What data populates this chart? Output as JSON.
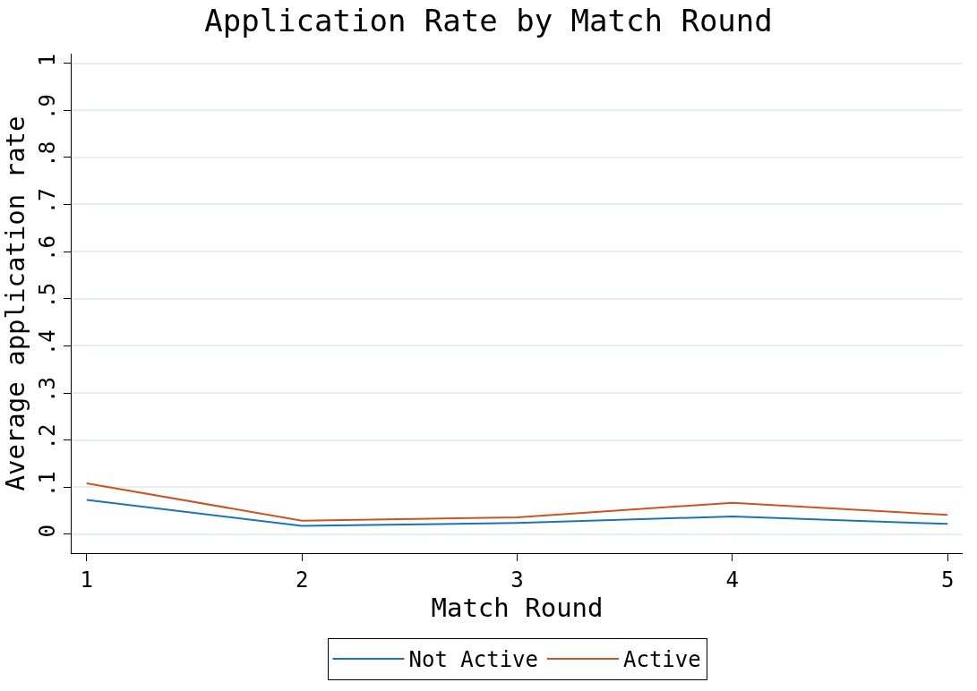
{
  "chart_data": {
    "type": "line",
    "title": "Application Rate by Match Round",
    "xlabel": "Match Round",
    "ylabel": "Average application rate",
    "x": [
      1,
      2,
      3,
      4,
      5
    ],
    "series": [
      {
        "name": "Not Active",
        "color": "#1a75b5",
        "values": [
          0.073,
          0.018,
          0.024,
          0.038,
          0.022
        ]
      },
      {
        "name": "Active",
        "color": "#cc5420",
        "values": [
          0.108,
          0.029,
          0.036,
          0.067,
          0.041
        ]
      }
    ],
    "xlim": [
      0.93,
      5.07
    ],
    "xticks": [
      1,
      2,
      3,
      4,
      5
    ],
    "ylim": [
      -0.04,
      1.02
    ],
    "yticks": [
      0,
      {
        "value": 0.1,
        "label": ".1"
      },
      {
        "value": 0.2,
        "label": ".2"
      },
      {
        "value": 0.3,
        "label": ".3"
      },
      {
        "value": 0.4,
        "label": ".4"
      },
      {
        "value": 0.5,
        "label": ".5"
      },
      {
        "value": 0.6,
        "label": ".6"
      },
      {
        "value": 0.7,
        "label": ".7"
      },
      {
        "value": 0.8,
        "label": ".8"
      },
      {
        "value": 0.9,
        "label": ".9"
      },
      1
    ],
    "grid": "y",
    "legend": "bottom",
    "marker": "none",
    "line_style": "solid"
  }
}
